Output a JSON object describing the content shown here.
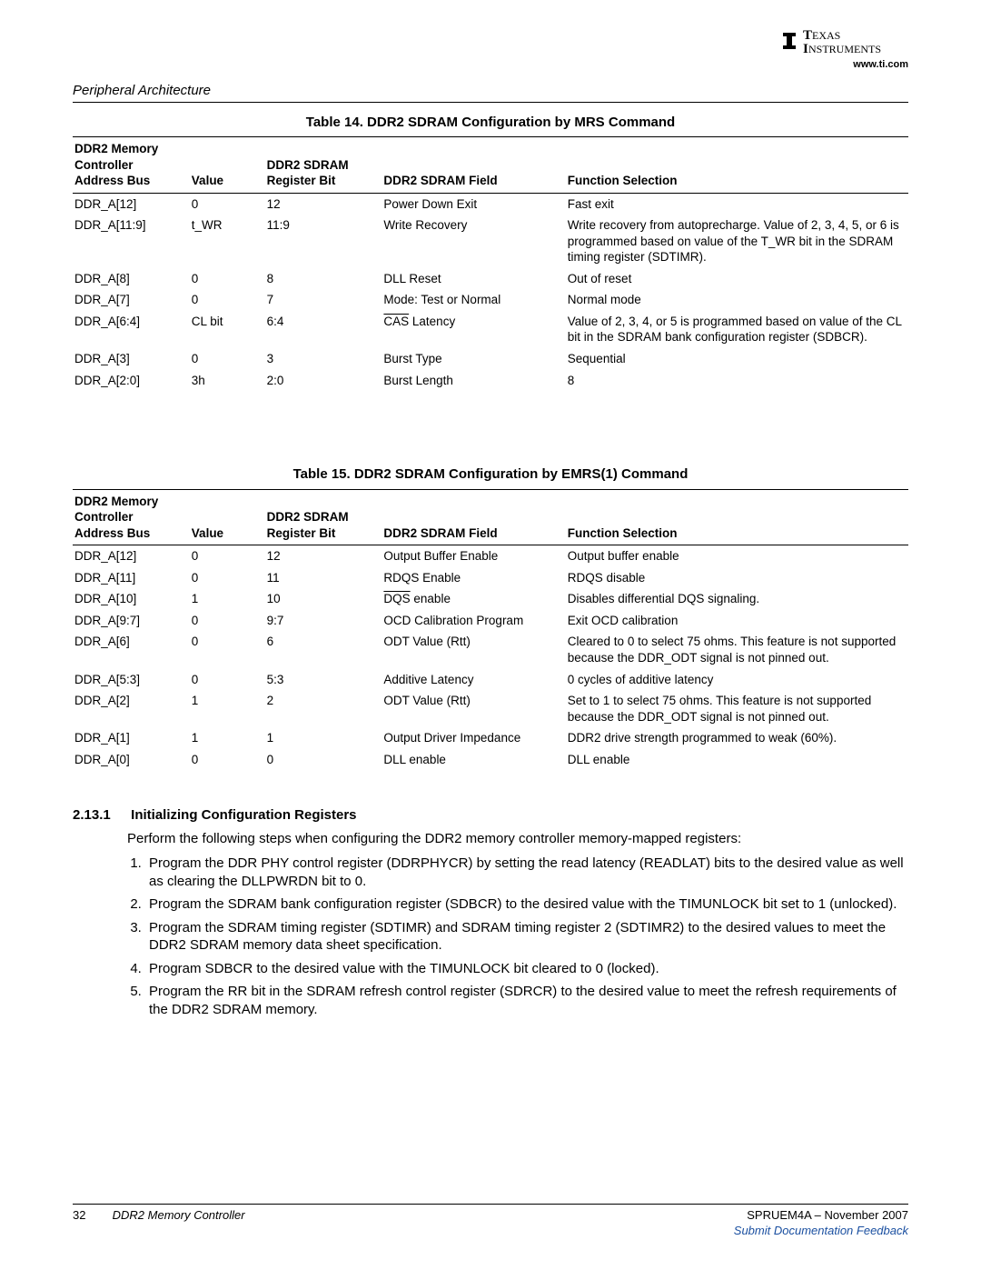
{
  "logo": {
    "company_top": "TEXAS",
    "company_bottom": "INSTRUMENTS",
    "url": "www.ti.com"
  },
  "header": {
    "section": "Peripheral Architecture"
  },
  "table14": {
    "title": "Table 14. DDR2 SDRAM Configuration by MRS Command",
    "columns": {
      "c0": "DDR2 Memory Controller Address Bus",
      "c1": "Value",
      "c2": "DDR2 SDRAM Register Bit",
      "c3": "DDR2 SDRAM Field",
      "c4": "Function Selection"
    },
    "rows": [
      {
        "c0": "DDR_A[12]",
        "c1": "0",
        "c2": "12",
        "c3": "Power Down Exit",
        "c4": "Fast exit",
        "over": false
      },
      {
        "c0": "DDR_A[11:9]",
        "c1": "t_WR",
        "c2": "11:9",
        "c3": "Write Recovery",
        "c4": "Write recovery from autoprecharge. Value of 2, 3, 4, 5, or 6 is programmed based on value of the T_WR bit in the SDRAM timing register (SDTIMR).",
        "over": false
      },
      {
        "c0": "DDR_A[8]",
        "c1": "0",
        "c2": "8",
        "c3": "DLL Reset",
        "c4": "Out of reset",
        "over": false
      },
      {
        "c0": "DDR_A[7]",
        "c1": "0",
        "c2": "7",
        "c3": "Mode: Test or Normal",
        "c4": "Normal mode",
        "over": false
      },
      {
        "c0": "DDR_A[6:4]",
        "c1": "CL bit",
        "c2": "6:4",
        "c3": "CAS Latency",
        "c4": "Value of 2, 3, 4, or 5 is programmed based on value of the CL bit in the SDRAM bank configuration register (SDBCR).",
        "over": true
      },
      {
        "c0": "DDR_A[3]",
        "c1": "0",
        "c2": "3",
        "c3": "Burst Type",
        "c4": "Sequential",
        "over": false
      },
      {
        "c0": "DDR_A[2:0]",
        "c1": "3h",
        "c2": "2:0",
        "c3": "Burst Length",
        "c4": "8",
        "over": false
      }
    ]
  },
  "table15": {
    "title": "Table 15. DDR2 SDRAM Configuration by EMRS(1) Command",
    "columns": {
      "c0": "DDR2 Memory Controller Address Bus",
      "c1": "Value",
      "c2": "DDR2 SDRAM Register Bit",
      "c3": "DDR2 SDRAM Field",
      "c4": "Function Selection"
    },
    "rows": [
      {
        "c0": "DDR_A[12]",
        "c1": "0",
        "c2": "12",
        "c3": "Output Buffer Enable",
        "c4": "Output buffer enable",
        "over": false
      },
      {
        "c0": "DDR_A[11]",
        "c1": "0",
        "c2": "11",
        "c3": "RDQS Enable",
        "c4": "RDQS disable",
        "over": false
      },
      {
        "c0": "DDR_A[10]",
        "c1": "1",
        "c2": "10",
        "c3": "DQS enable",
        "c4": "Disables differential DQS signaling.",
        "over": true
      },
      {
        "c0": "DDR_A[9:7]",
        "c1": "0",
        "c2": "9:7",
        "c3": "OCD Calibration Program",
        "c4": "Exit OCD calibration",
        "over": false
      },
      {
        "c0": "DDR_A[6]",
        "c1": "0",
        "c2": "6",
        "c3": "ODT Value (Rtt)",
        "c4": "Cleared to 0 to select 75 ohms. This feature is not supported because the DDR_ODT signal is not pinned out.",
        "over": false
      },
      {
        "c0": "DDR_A[5:3]",
        "c1": "0",
        "c2": "5:3",
        "c3": "Additive Latency",
        "c4": "0 cycles of additive latency",
        "over": false
      },
      {
        "c0": "DDR_A[2]",
        "c1": "1",
        "c2": "2",
        "c3": "ODT Value (Rtt)",
        "c4": "Set to 1 to select 75 ohms. This feature is not supported because the DDR_ODT signal is not pinned out.",
        "over": false
      },
      {
        "c0": "DDR_A[1]",
        "c1": "1",
        "c2": "1",
        "c3": "Output Driver Impedance",
        "c4": "DDR2 drive strength programmed to weak (60%).",
        "over": false
      },
      {
        "c0": "DDR_A[0]",
        "c1": "0",
        "c2": "0",
        "c3": "DLL enable",
        "c4": "DLL enable",
        "over": false
      }
    ]
  },
  "section": {
    "num": "2.13.1",
    "title": "Initializing Configuration Registers",
    "intro": "Perform the following steps when configuring the DDR2 memory controller memory-mapped registers:",
    "steps": [
      "Program the DDR PHY control register (DDRPHYCR) by setting the read latency (READLAT) bits to the desired value as well as clearing the DLLPWRDN bit to 0.",
      "Program the SDRAM bank configuration register (SDBCR) to the desired value with the TIMUNLOCK bit set to 1 (unlocked).",
      "Program the SDRAM timing register (SDTIMR) and SDRAM timing register 2 (SDTIMR2) to the desired values to meet the DDR2 SDRAM memory data sheet specification.",
      "Program SDBCR to the desired value with the TIMUNLOCK bit cleared to 0 (locked).",
      "Program the RR bit in the SDRAM refresh control register (SDRCR) to the desired value to meet the refresh requirements of the DDR2 SDRAM memory."
    ]
  },
  "footer": {
    "page": "32",
    "doc": "DDR2 Memory Controller",
    "rev": "SPRUEM4A – November 2007",
    "feedback": "Submit Documentation Feedback"
  }
}
